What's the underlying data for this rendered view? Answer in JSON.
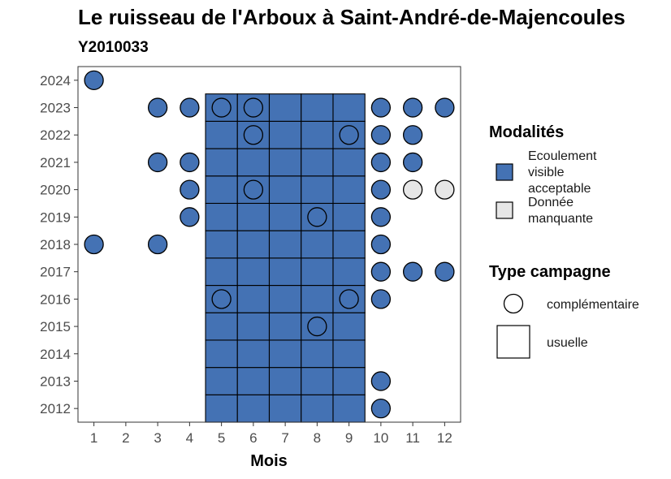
{
  "chart_data": {
    "type": "heatmap",
    "title": "Le ruisseau de l'Arboux à Saint-André-de-Majencoules",
    "subtitle": "Y2010033",
    "xlabel": "Mois",
    "ylabel": "",
    "x_ticks": [
      1,
      2,
      3,
      4,
      5,
      6,
      7,
      8,
      9,
      10,
      11,
      12
    ],
    "y_ticks": [
      2012,
      2013,
      2014,
      2015,
      2016,
      2017,
      2018,
      2019,
      2020,
      2021,
      2022,
      2023,
      2024
    ],
    "xlim": [
      0.5,
      12.5
    ],
    "ylim": [
      2011.5,
      2024.5
    ],
    "colors": {
      "Ecoulement visible acceptable": "#4472b4",
      "Donnée manquante": "#e6e6e6"
    },
    "usual_campaign": {
      "months": [
        5,
        6,
        7,
        8,
        9
      ],
      "years": [
        2012,
        2013,
        2014,
        2015,
        2016,
        2017,
        2018,
        2019,
        2020,
        2021,
        2022,
        2023
      ],
      "modalite": "Ecoulement visible acceptable"
    },
    "complementary_points": [
      {
        "year": 2024,
        "month": 1,
        "modalite": "Ecoulement visible acceptable"
      },
      {
        "year": 2023,
        "month": 3,
        "modalite": "Ecoulement visible acceptable"
      },
      {
        "year": 2023,
        "month": 4,
        "modalite": "Ecoulement visible acceptable"
      },
      {
        "year": 2023,
        "month": 5,
        "modalite": "Ecoulement visible acceptable"
      },
      {
        "year": 2023,
        "month": 6,
        "modalite": "Ecoulement visible acceptable"
      },
      {
        "year": 2023,
        "month": 10,
        "modalite": "Ecoulement visible acceptable"
      },
      {
        "year": 2023,
        "month": 11,
        "modalite": "Ecoulement visible acceptable"
      },
      {
        "year": 2023,
        "month": 12,
        "modalite": "Ecoulement visible acceptable"
      },
      {
        "year": 2022,
        "month": 6,
        "modalite": "Ecoulement visible acceptable"
      },
      {
        "year": 2022,
        "month": 9,
        "modalite": "Ecoulement visible acceptable"
      },
      {
        "year": 2022,
        "month": 10,
        "modalite": "Ecoulement visible acceptable"
      },
      {
        "year": 2022,
        "month": 11,
        "modalite": "Ecoulement visible acceptable"
      },
      {
        "year": 2021,
        "month": 3,
        "modalite": "Ecoulement visible acceptable"
      },
      {
        "year": 2021,
        "month": 4,
        "modalite": "Ecoulement visible acceptable"
      },
      {
        "year": 2021,
        "month": 10,
        "modalite": "Ecoulement visible acceptable"
      },
      {
        "year": 2021,
        "month": 11,
        "modalite": "Ecoulement visible acceptable"
      },
      {
        "year": 2020,
        "month": 4,
        "modalite": "Ecoulement visible acceptable"
      },
      {
        "year": 2020,
        "month": 6,
        "modalite": "Ecoulement visible acceptable"
      },
      {
        "year": 2020,
        "month": 10,
        "modalite": "Ecoulement visible acceptable"
      },
      {
        "year": 2020,
        "month": 11,
        "modalite": "Donnée manquante"
      },
      {
        "year": 2020,
        "month": 12,
        "modalite": "Donnée manquante"
      },
      {
        "year": 2019,
        "month": 4,
        "modalite": "Ecoulement visible acceptable"
      },
      {
        "year": 2019,
        "month": 8,
        "modalite": "Ecoulement visible acceptable"
      },
      {
        "year": 2019,
        "month": 10,
        "modalite": "Ecoulement visible acceptable"
      },
      {
        "year": 2018,
        "month": 1,
        "modalite": "Ecoulement visible acceptable"
      },
      {
        "year": 2018,
        "month": 3,
        "modalite": "Ecoulement visible acceptable"
      },
      {
        "year": 2018,
        "month": 10,
        "modalite": "Ecoulement visible acceptable"
      },
      {
        "year": 2017,
        "month": 10,
        "modalite": "Ecoulement visible acceptable"
      },
      {
        "year": 2017,
        "month": 11,
        "modalite": "Ecoulement visible acceptable"
      },
      {
        "year": 2017,
        "month": 12,
        "modalite": "Ecoulement visible acceptable"
      },
      {
        "year": 2016,
        "month": 5,
        "modalite": "Ecoulement visible acceptable"
      },
      {
        "year": 2016,
        "month": 9,
        "modalite": "Ecoulement visible acceptable"
      },
      {
        "year": 2016,
        "month": 10,
        "modalite": "Ecoulement visible acceptable"
      },
      {
        "year": 2015,
        "month": 8,
        "modalite": "Ecoulement visible acceptable"
      },
      {
        "year": 2013,
        "month": 10,
        "modalite": "Ecoulement visible acceptable"
      },
      {
        "year": 2012,
        "month": 10,
        "modalite": "Ecoulement visible acceptable"
      }
    ],
    "legend": {
      "placement": "right",
      "modalites_title": "Modalités",
      "modalites": [
        {
          "lines": [
            "Ecoulement",
            "visible",
            "acceptable"
          ],
          "color": "#4472b4"
        },
        {
          "lines": [
            "Donnée",
            "manquante"
          ],
          "color": "#e6e6e6"
        }
      ],
      "type_title": "Type campagne",
      "types": [
        {
          "label": "complémentaire",
          "shape": "circle"
        },
        {
          "label": "usuelle",
          "shape": "square"
        }
      ]
    }
  }
}
